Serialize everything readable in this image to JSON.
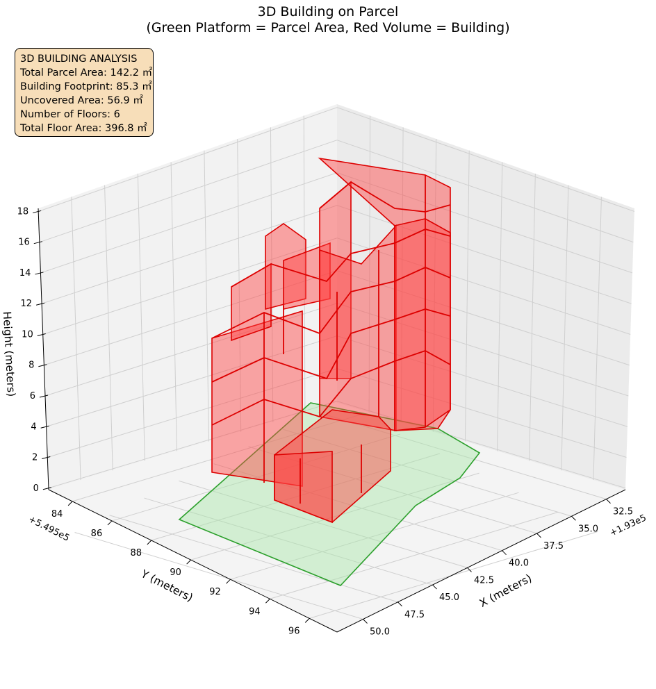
{
  "chart_data": {
    "type": "3d-polygons",
    "title": "3D Building on Parcel",
    "subtitle": "(Green Platform = Parcel Area, Red Volume = Building)",
    "xlabel": "X (meters)",
    "ylabel": "Y (meters)",
    "zlabel": "Height (meters)",
    "x_offset_label": "+1.93e5",
    "y_offset_label": "+5.495e5",
    "x_ticks": [
      "32.5",
      "35.0",
      "37.5",
      "40.0",
      "42.5",
      "45.0",
      "47.5",
      "50.0"
    ],
    "y_ticks": [
      "84",
      "86",
      "88",
      "90",
      "92",
      "94",
      "96"
    ],
    "z_ticks": [
      "0",
      "2",
      "4",
      "6",
      "8",
      "10",
      "12",
      "14",
      "16",
      "18"
    ],
    "grid": true,
    "parcel_color": "#a8e6a8",
    "parcel_edge_color": "#2ca02c",
    "building_color": "#ff4040",
    "building_edge_color": "#dd0000",
    "floors": 6
  },
  "stats": {
    "heading": "3D BUILDING ANALYSIS",
    "lines": [
      "Total Parcel Area: 142.2 ㎡",
      "Building Footprint: 85.3 ㎡",
      "Uncovered Area: 56.9 ㎡",
      "Number of Floors: 6",
      "Total Floor Area: 396.8 ㎡"
    ]
  }
}
